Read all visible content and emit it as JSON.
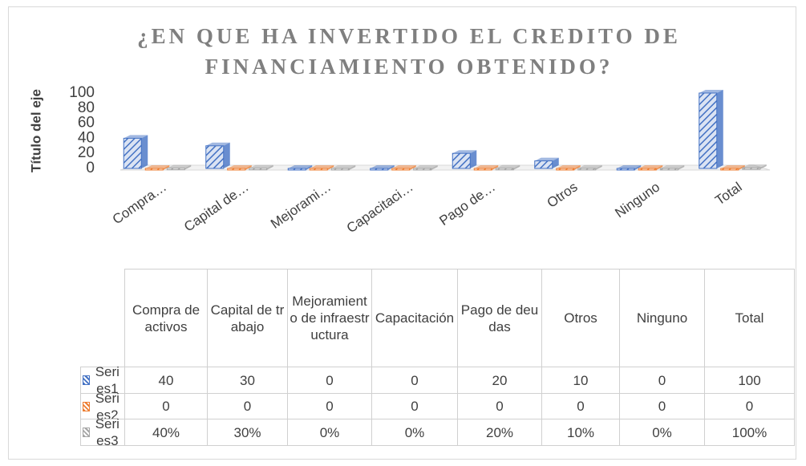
{
  "chart_data": {
    "type": "bar3d",
    "title": "¿EN QUE HA INVERTIDO EL CREDITO DE FINANCIAMIENTO OBTENIDO?",
    "y_label": "Título del eje",
    "axis_labels": [
      "Compra…",
      "Capital de…",
      "Mejorami…",
      "Capacitaci…",
      "Pago de…",
      "Otros",
      "Ninguno",
      "Total"
    ],
    "categories": [
      "Compra de activos",
      "Capital de trabajo",
      "Mejoramiento de infraestructura",
      "Capacitación",
      "Pago de deudas",
      "Otros",
      "Ninguno",
      "Total"
    ],
    "series": [
      {
        "name": "Series1",
        "color": "#4472c4",
        "values": [
          40,
          30,
          0,
          0,
          20,
          10,
          0,
          100
        ]
      },
      {
        "name": "Series2",
        "color": "#ed7d31",
        "values": [
          0,
          0,
          0,
          0,
          0,
          0,
          0,
          0
        ]
      },
      {
        "name": "Series3",
        "color": "#a5a5a5",
        "values": [
          0.4,
          0.3,
          0,
          0,
          0.2,
          0.1,
          0,
          1
        ],
        "value_labels": [
          "40%",
          "30%",
          "0%",
          "0%",
          "20%",
          "10%",
          "0%",
          "100%"
        ]
      }
    ],
    "ylim": [
      0,
      100
    ],
    "yticks": [
      0,
      20,
      40,
      60,
      80,
      100
    ],
    "data_table": true
  }
}
